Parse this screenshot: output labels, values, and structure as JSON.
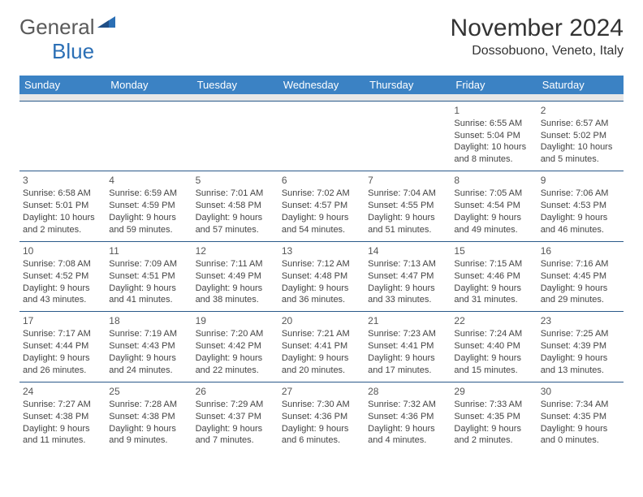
{
  "logo": {
    "general": "General",
    "blue": "Blue"
  },
  "title": "November 2024",
  "location": "Dossobuono, Veneto, Italy",
  "colors": {
    "header_bg": "#3b82c4",
    "header_text": "#ffffff",
    "rule": "#2b5a8a",
    "sep_bg": "#e8e8e8",
    "text": "#444444",
    "logo_gray": "#5a5a5a",
    "logo_blue": "#2b6fb5"
  },
  "day_headers": [
    "Sunday",
    "Monday",
    "Tuesday",
    "Wednesday",
    "Thursday",
    "Friday",
    "Saturday"
  ],
  "weeks": [
    [
      null,
      null,
      null,
      null,
      null,
      {
        "n": "1",
        "sr": "6:55 AM",
        "ss": "5:04 PM",
        "dl": "10 hours and 8 minutes."
      },
      {
        "n": "2",
        "sr": "6:57 AM",
        "ss": "5:02 PM",
        "dl": "10 hours and 5 minutes."
      }
    ],
    [
      {
        "n": "3",
        "sr": "6:58 AM",
        "ss": "5:01 PM",
        "dl": "10 hours and 2 minutes."
      },
      {
        "n": "4",
        "sr": "6:59 AM",
        "ss": "4:59 PM",
        "dl": "9 hours and 59 minutes."
      },
      {
        "n": "5",
        "sr": "7:01 AM",
        "ss": "4:58 PM",
        "dl": "9 hours and 57 minutes."
      },
      {
        "n": "6",
        "sr": "7:02 AM",
        "ss": "4:57 PM",
        "dl": "9 hours and 54 minutes."
      },
      {
        "n": "7",
        "sr": "7:04 AM",
        "ss": "4:55 PM",
        "dl": "9 hours and 51 minutes."
      },
      {
        "n": "8",
        "sr": "7:05 AM",
        "ss": "4:54 PM",
        "dl": "9 hours and 49 minutes."
      },
      {
        "n": "9",
        "sr": "7:06 AM",
        "ss": "4:53 PM",
        "dl": "9 hours and 46 minutes."
      }
    ],
    [
      {
        "n": "10",
        "sr": "7:08 AM",
        "ss": "4:52 PM",
        "dl": "9 hours and 43 minutes."
      },
      {
        "n": "11",
        "sr": "7:09 AM",
        "ss": "4:51 PM",
        "dl": "9 hours and 41 minutes."
      },
      {
        "n": "12",
        "sr": "7:11 AM",
        "ss": "4:49 PM",
        "dl": "9 hours and 38 minutes."
      },
      {
        "n": "13",
        "sr": "7:12 AM",
        "ss": "4:48 PM",
        "dl": "9 hours and 36 minutes."
      },
      {
        "n": "14",
        "sr": "7:13 AM",
        "ss": "4:47 PM",
        "dl": "9 hours and 33 minutes."
      },
      {
        "n": "15",
        "sr": "7:15 AM",
        "ss": "4:46 PM",
        "dl": "9 hours and 31 minutes."
      },
      {
        "n": "16",
        "sr": "7:16 AM",
        "ss": "4:45 PM",
        "dl": "9 hours and 29 minutes."
      }
    ],
    [
      {
        "n": "17",
        "sr": "7:17 AM",
        "ss": "4:44 PM",
        "dl": "9 hours and 26 minutes."
      },
      {
        "n": "18",
        "sr": "7:19 AM",
        "ss": "4:43 PM",
        "dl": "9 hours and 24 minutes."
      },
      {
        "n": "19",
        "sr": "7:20 AM",
        "ss": "4:42 PM",
        "dl": "9 hours and 22 minutes."
      },
      {
        "n": "20",
        "sr": "7:21 AM",
        "ss": "4:41 PM",
        "dl": "9 hours and 20 minutes."
      },
      {
        "n": "21",
        "sr": "7:23 AM",
        "ss": "4:41 PM",
        "dl": "9 hours and 17 minutes."
      },
      {
        "n": "22",
        "sr": "7:24 AM",
        "ss": "4:40 PM",
        "dl": "9 hours and 15 minutes."
      },
      {
        "n": "23",
        "sr": "7:25 AM",
        "ss": "4:39 PM",
        "dl": "9 hours and 13 minutes."
      }
    ],
    [
      {
        "n": "24",
        "sr": "7:27 AM",
        "ss": "4:38 PM",
        "dl": "9 hours and 11 minutes."
      },
      {
        "n": "25",
        "sr": "7:28 AM",
        "ss": "4:38 PM",
        "dl": "9 hours and 9 minutes."
      },
      {
        "n": "26",
        "sr": "7:29 AM",
        "ss": "4:37 PM",
        "dl": "9 hours and 7 minutes."
      },
      {
        "n": "27",
        "sr": "7:30 AM",
        "ss": "4:36 PM",
        "dl": "9 hours and 6 minutes."
      },
      {
        "n": "28",
        "sr": "7:32 AM",
        "ss": "4:36 PM",
        "dl": "9 hours and 4 minutes."
      },
      {
        "n": "29",
        "sr": "7:33 AM",
        "ss": "4:35 PM",
        "dl": "9 hours and 2 minutes."
      },
      {
        "n": "30",
        "sr": "7:34 AM",
        "ss": "4:35 PM",
        "dl": "9 hours and 0 minutes."
      }
    ]
  ],
  "labels": {
    "sunrise": "Sunrise:",
    "sunset": "Sunset:",
    "daylight": "Daylight:"
  }
}
